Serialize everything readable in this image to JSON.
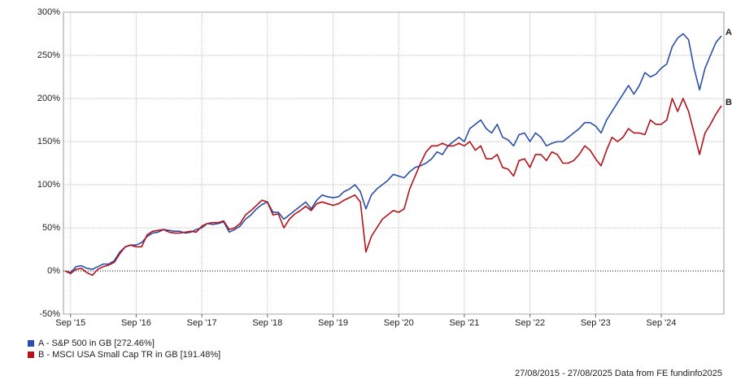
{
  "chart_data": {
    "type": "line",
    "categories": [
      null,
      "Sep '15",
      null,
      null,
      null,
      null,
      null,
      null,
      null,
      null,
      null,
      null,
      null,
      "Sep '16",
      null,
      null,
      null,
      null,
      null,
      null,
      null,
      null,
      null,
      null,
      null,
      "Sep '17",
      null,
      null,
      null,
      null,
      null,
      null,
      null,
      null,
      null,
      null,
      null,
      "Sep '18",
      null,
      null,
      null,
      null,
      null,
      null,
      null,
      null,
      null,
      null,
      null,
      "Sep '19",
      null,
      null,
      null,
      null,
      null,
      null,
      null,
      null,
      null,
      null,
      null,
      "Sep '20",
      null,
      null,
      null,
      null,
      null,
      null,
      null,
      null,
      null,
      null,
      null,
      "Sep '21",
      null,
      null,
      null,
      null,
      null,
      null,
      null,
      null,
      null,
      null,
      null,
      "Sep '22",
      null,
      null,
      null,
      null,
      null,
      null,
      null,
      null,
      null,
      null,
      null,
      "Sep '23",
      null,
      null,
      null,
      null,
      null,
      null,
      null,
      null,
      null,
      null,
      null,
      "Sep '24",
      null,
      null,
      null,
      null,
      null,
      null,
      null,
      null,
      null,
      null,
      null
    ],
    "series": [
      {
        "name": "A - S&P 500 in GB [272.46%]",
        "label": "A",
        "color": "#2a4fa8",
        "values": [
          0,
          -2,
          5,
          6,
          3,
          2,
          5,
          8,
          8,
          12,
          22,
          28,
          30,
          30,
          33,
          40,
          44,
          45,
          48,
          47,
          46,
          46,
          44,
          45,
          48,
          50,
          55,
          54,
          55,
          57,
          45,
          48,
          52,
          60,
          65,
          72,
          77,
          80,
          68,
          68,
          60,
          65,
          70,
          75,
          80,
          72,
          82,
          88,
          86,
          85,
          86,
          92,
          95,
          100,
          92,
          72,
          88,
          95,
          100,
          105,
          112,
          110,
          108,
          115,
          120,
          122,
          125,
          130,
          138,
          135,
          145,
          150,
          155,
          150,
          165,
          170,
          175,
          165,
          160,
          170,
          155,
          152,
          145,
          158,
          160,
          150,
          160,
          155,
          145,
          148,
          150,
          150,
          155,
          160,
          165,
          172,
          172,
          168,
          160,
          175,
          185,
          195,
          205,
          215,
          205,
          215,
          230,
          225,
          228,
          235,
          240,
          260,
          270,
          275,
          268,
          235,
          210,
          235,
          250,
          265,
          272.46
        ]
      },
      {
        "name": "B - MSCI USA Small Cap TR in GB [191.48%]",
        "label": "B",
        "color": "#b3121a",
        "values": [
          0,
          -3,
          2,
          3,
          -2,
          -5,
          2,
          5,
          7,
          10,
          20,
          28,
          30,
          28,
          28,
          42,
          46,
          47,
          48,
          45,
          44,
          44,
          45,
          46,
          45,
          52,
          55,
          56,
          56,
          58,
          48,
          50,
          55,
          65,
          70,
          76,
          82,
          80,
          65,
          66,
          50,
          60,
          66,
          70,
          75,
          70,
          78,
          80,
          78,
          76,
          78,
          82,
          85,
          88,
          80,
          22,
          40,
          50,
          60,
          65,
          70,
          68,
          72,
          95,
          110,
          125,
          138,
          145,
          145,
          148,
          145,
          145,
          148,
          145,
          150,
          140,
          145,
          130,
          130,
          135,
          120,
          118,
          110,
          128,
          130,
          120,
          135,
          135,
          128,
          138,
          135,
          125,
          125,
          128,
          135,
          145,
          140,
          130,
          122,
          140,
          155,
          150,
          155,
          165,
          160,
          160,
          158,
          175,
          170,
          170,
          175,
          200,
          185,
          200,
          185,
          160,
          135,
          160,
          170,
          182,
          191.48
        ]
      }
    ],
    "ylim": [
      -50,
      300
    ],
    "yticks": [
      {
        "value": -50,
        "label": "-50%"
      },
      {
        "value": 0,
        "label": "0%"
      },
      {
        "value": 50,
        "label": "50%"
      },
      {
        "value": 100,
        "label": "100%"
      },
      {
        "value": 150,
        "label": "150%"
      },
      {
        "value": 200,
        "label": "200%"
      },
      {
        "value": 250,
        "label": "250%"
      },
      {
        "value": 300,
        "label": "300%"
      }
    ],
    "grid": true,
    "footer": "27/08/2015 - 27/08/2025 Data from FE fundinfo2025"
  }
}
